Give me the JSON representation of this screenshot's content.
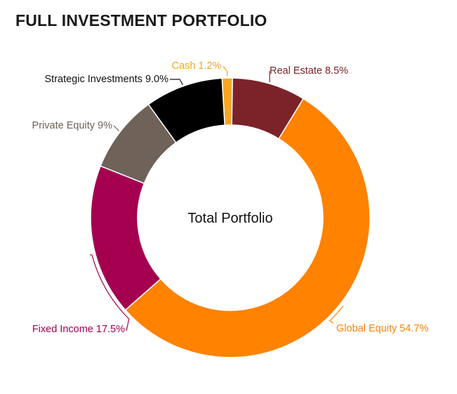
{
  "chart_data": {
    "type": "pie",
    "title": "FULL INVESTMENT PORTFOLIO",
    "center_label": "Total Portfolio",
    "slices": [
      {
        "name": "Cash",
        "value": 1.2,
        "label": "Cash 1.2%",
        "color": "#f5a623"
      },
      {
        "name": "Real Estate",
        "value": 8.5,
        "label": "Real Estate 8.5%",
        "color": "#7b2329"
      },
      {
        "name": "Global Equity",
        "value": 54.7,
        "label": "Global Equity 54.7%",
        "color": "#ff8200"
      },
      {
        "name": "Fixed Income",
        "value": 17.5,
        "label": "Fixed Income 17.5%",
        "color": "#a50050"
      },
      {
        "name": "Private Equity",
        "value": 9,
        "label": "Private Equity 9%",
        "color": "#6e6259"
      },
      {
        "name": "Strategic Investments",
        "value": 9.0,
        "label": "Strategic Investments 9.0%",
        "color": "#000000"
      }
    ]
  }
}
